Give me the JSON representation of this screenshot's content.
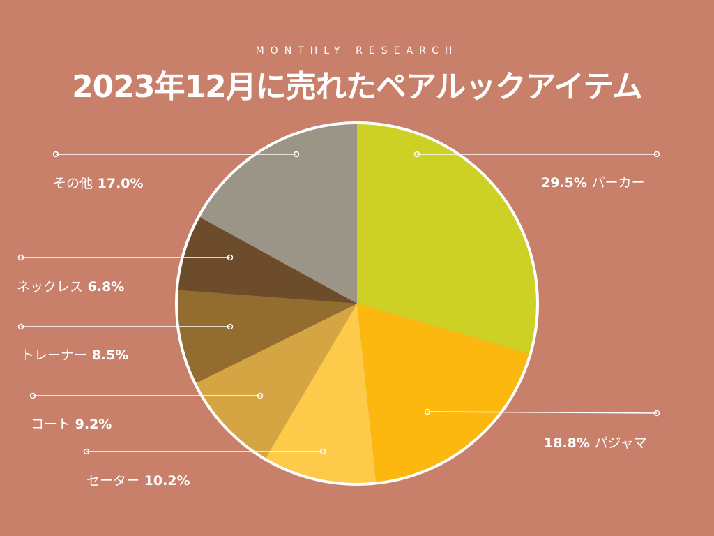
{
  "header": {
    "subtitle": "MONTHLY RESEARCH",
    "title": "2023年12月に売れたペアルックアイテム"
  },
  "colors": {
    "background": "#c8806a",
    "ring": "#ffffff",
    "lines": "#ffffff"
  },
  "chart_data": {
    "type": "pie",
    "title": "2023年12月に売れたペアルックアイテム",
    "unit": "%",
    "slices": [
      {
        "label": "パーカー",
        "value": 29.5,
        "display": "29.5%",
        "color": "#cdd126"
      },
      {
        "label": "パジャマ",
        "value": 18.8,
        "display": "18.8%",
        "color": "#fcb80f"
      },
      {
        "label": "セーター",
        "value": 10.2,
        "display": "10.2%",
        "color": "#fdca4a"
      },
      {
        "label": "コート",
        "value": 9.2,
        "display": "9.2%",
        "color": "#d6a543"
      },
      {
        "label": "トレーナー",
        "value": 8.5,
        "display": "8.5%",
        "color": "#926d2f"
      },
      {
        "label": "ネックレス",
        "value": 6.8,
        "display": "6.8%",
        "color": "#6d4c2c"
      },
      {
        "label": "その他",
        "value": 17.0,
        "display": "17.0%",
        "color": "#9a9586"
      }
    ]
  }
}
